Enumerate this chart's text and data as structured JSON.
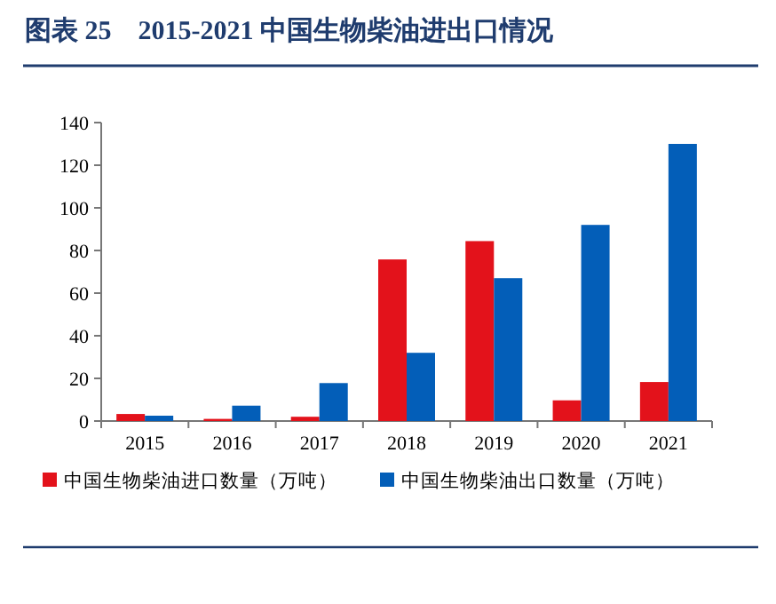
{
  "chart_data": {
    "type": "bar",
    "title": "图表 25　2015-2021 中国生物柴油进出口情况",
    "categories": [
      "2015",
      "2016",
      "2017",
      "2018",
      "2019",
      "2020",
      "2021"
    ],
    "series": [
      {
        "name": "中国生物柴油进口数量（万吨）",
        "color": "#e3121b",
        "values": [
          3.3,
          1,
          2,
          75.8,
          84.4,
          9.7,
          18.3
        ]
      },
      {
        "name": "中国生物柴油出口数量（万吨）",
        "color": "#035eb8",
        "values": [
          2.5,
          7.2,
          17.8,
          32,
          67,
          92,
          130
        ]
      }
    ],
    "ylim": [
      0,
      140
    ],
    "yticks": [
      0,
      20,
      40,
      60,
      80,
      100,
      120,
      140
    ],
    "legend": "bottom"
  }
}
